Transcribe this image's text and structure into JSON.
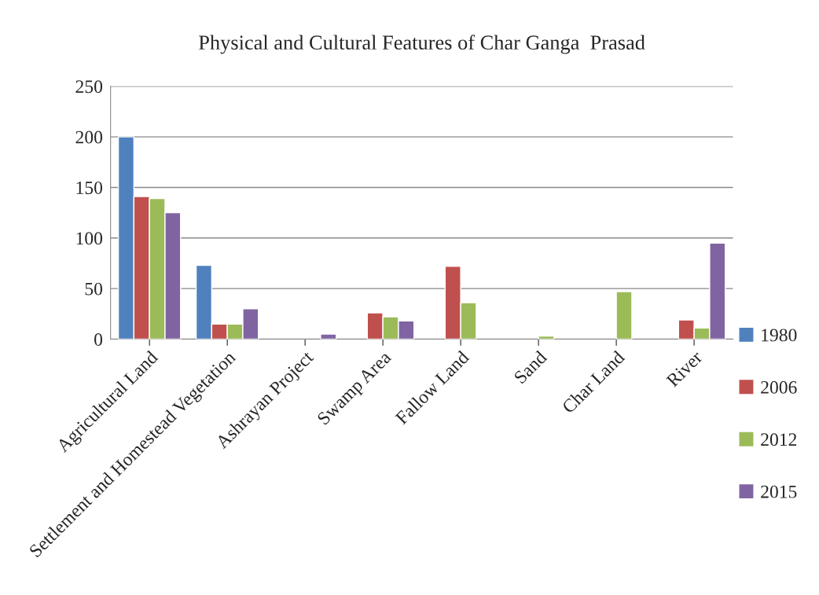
{
  "chart_data": {
    "type": "bar",
    "title": "Physical and Cultural Features of Char Ganga  Prasad",
    "categories": [
      "Agricultural Land",
      "Settlement and Homestead Vegetation",
      "Ashrayan Project",
      "Swamp Area",
      "Fallow Land",
      "Sand",
      "Char Land",
      "River"
    ],
    "series": [
      {
        "name": "1980",
        "color": "#4f81bd",
        "values": [
          200,
          73,
          null,
          null,
          null,
          null,
          null,
          null
        ]
      },
      {
        "name": "2006",
        "color": "#c0504d",
        "values": [
          141,
          15,
          null,
          26,
          72,
          null,
          null,
          19
        ]
      },
      {
        "name": "2012",
        "color": "#9bbb59",
        "values": [
          139,
          15,
          null,
          22,
          36,
          3,
          47,
          11
        ]
      },
      {
        "name": "2015",
        "color": "#8064a2",
        "values": [
          125,
          30,
          5,
          18,
          null,
          null,
          null,
          95
        ]
      }
    ],
    "ylim": [
      0,
      250
    ],
    "yticks": [
      0,
      50,
      100,
      150,
      200,
      250
    ],
    "grid": "y",
    "legend": "right"
  }
}
